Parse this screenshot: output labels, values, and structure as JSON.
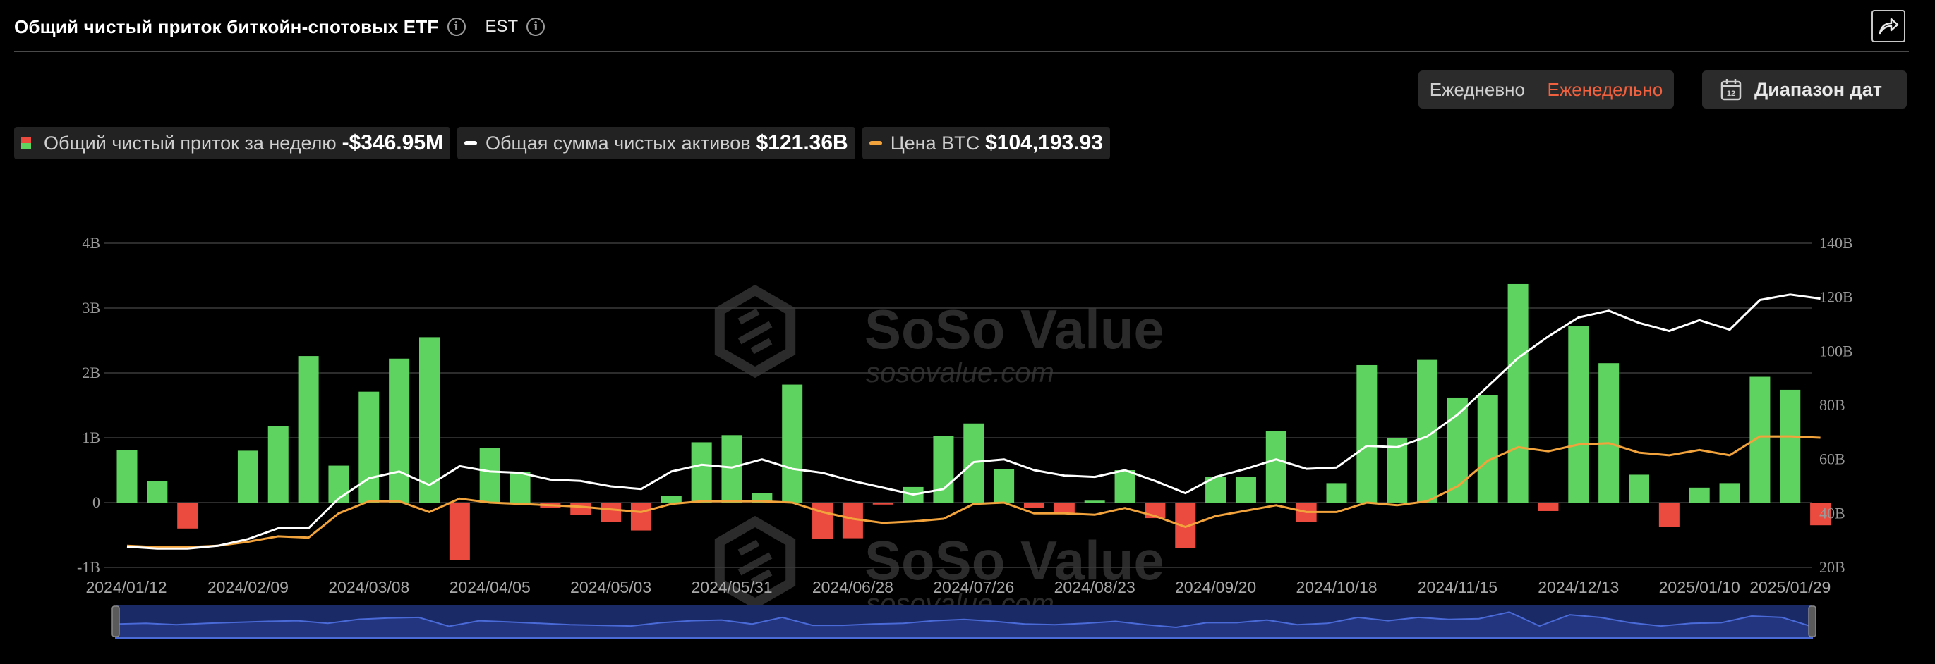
{
  "header": {
    "title": "Общий чистый приток биткойн-спотовых ETF",
    "timezone": "EST"
  },
  "toolbar": {
    "daily_label": "Ежедневно",
    "weekly_label": "Еженедельно",
    "active_period": "weekly",
    "date_range_label": "Диапазон дат",
    "calendar_day": "12"
  },
  "legend": {
    "inflow_label": "Общий чистый приток за неделю",
    "inflow_value": "-$346.95M",
    "assets_label": "Общая сумма чистых активов",
    "assets_value": "$121.36B",
    "price_label": "Цена BTC",
    "price_value": "$104,193.93"
  },
  "watermark": {
    "brand": "SoSo Value",
    "url": "sosovalue.com"
  },
  "colors": {
    "positive": "#5fd35f",
    "negative": "#eb4b3f",
    "assets_line": "#ffffff",
    "price_line": "#f2a33c",
    "active_tab": "#f2613f",
    "navigator_fill": "#1a2a66"
  },
  "chart_data": {
    "type": "bar",
    "left_axis": {
      "ylim": [
        -1,
        4
      ],
      "ticks": [
        "-1B",
        "0",
        "1B",
        "2B",
        "3B",
        "4B"
      ],
      "unit": "B USD"
    },
    "right_axis": {
      "ylim": [
        20,
        140
      ],
      "ticks": [
        "20B",
        "40B",
        "60B",
        "80B",
        "100B",
        "120B",
        "140B"
      ]
    },
    "x_tick_labels": [
      "2024/01/12",
      "2024/02/09",
      "2024/03/08",
      "2024/04/05",
      "2024/05/03",
      "2024/05/31",
      "2024/06/28",
      "2024/07/26",
      "2024/08/23",
      "2024/09/20",
      "2024/10/18",
      "2024/11/15",
      "2024/12/13",
      "2025/01/10",
      "2025/01/29"
    ],
    "x_tick_week_index": [
      0,
      4,
      8,
      12,
      16,
      20,
      24,
      28,
      32,
      36,
      40,
      44,
      48,
      52,
      55
    ],
    "grid": true,
    "series": [
      {
        "name": "Общий чистый приток за неделю",
        "type": "bar",
        "axis": "left",
        "values": [
          0.81,
          0.33,
          -0.4,
          0,
          0.8,
          1.18,
          2.26,
          0.57,
          1.71,
          2.22,
          2.55,
          -0.89,
          0.84,
          0.47,
          -0.08,
          -0.19,
          -0.3,
          -0.43,
          0.1,
          0.93,
          1.04,
          0.15,
          1.82,
          -0.56,
          -0.55,
          -0.03,
          0.24,
          1.03,
          1.22,
          0.52,
          -0.08,
          -0.17,
          0.03,
          0.5,
          -0.24,
          -0.7,
          0.4,
          0.4,
          1.1,
          -0.3,
          0.3,
          2.12,
          0.99,
          2.2,
          1.62,
          1.66,
          3.37,
          -0.13,
          2.72,
          2.15,
          0.43,
          -0.38,
          0.23,
          0.3,
          1.94,
          1.74,
          -0.35
        ]
      },
      {
        "name": "Общая сумма чистых активов",
        "type": "line",
        "axis": "right",
        "values": [
          27.7,
          27.0,
          27.0,
          28.0,
          30.5,
          34.5,
          34.5,
          45.5,
          53.0,
          55.5,
          50.5,
          57.5,
          55.5,
          55.0,
          52.5,
          52.0,
          50.0,
          49.0,
          55.5,
          58.0,
          57.0,
          60.0,
          56.5,
          55.0,
          52.0,
          49.5,
          47.0,
          49.0,
          59.0,
          60.0,
          56.0,
          54.0,
          53.5,
          56.0,
          52.0,
          47.5,
          53.5,
          56.5,
          60.0,
          56.5,
          57.0,
          65.0,
          64.5,
          68.5,
          76.5,
          87.0,
          97.5,
          105.5,
          112.5,
          115.0,
          110.5,
          107.5,
          111.5,
          108.0,
          119.0,
          121.0,
          119.5
        ]
      },
      {
        "name": "Цена BTC",
        "type": "line",
        "axis": "right",
        "values": [
          28.0,
          27.5,
          27.5,
          28.0,
          29.5,
          31.5,
          31.0,
          40.0,
          44.5,
          44.5,
          40.5,
          45.5,
          44.0,
          43.5,
          43.0,
          42.5,
          41.5,
          40.5,
          43.5,
          44.5,
          44.5,
          44.5,
          44.0,
          40.5,
          38.0,
          36.5,
          37.0,
          38.0,
          43.5,
          44.0,
          40.0,
          40.0,
          39.5,
          42.0,
          39.0,
          35.0,
          39.0,
          41.0,
          43.0,
          40.5,
          40.5,
          44.0,
          43.0,
          44.5,
          50.0,
          59.5,
          64.5,
          63.0,
          65.5,
          66.0,
          62.5,
          61.5,
          63.5,
          61.5,
          68.5,
          68.5,
          68.0
        ]
      }
    ],
    "navigator_values": [
      0.42,
      0.44,
      0.4,
      0.44,
      0.47,
      0.5,
      0.52,
      0.44,
      0.56,
      0.6,
      0.62,
      0.35,
      0.52,
      0.48,
      0.44,
      0.4,
      0.38,
      0.36,
      0.46,
      0.52,
      0.54,
      0.42,
      0.62,
      0.38,
      0.38,
      0.42,
      0.44,
      0.52,
      0.56,
      0.5,
      0.42,
      0.4,
      0.44,
      0.5,
      0.4,
      0.32,
      0.46,
      0.46,
      0.54,
      0.4,
      0.44,
      0.62,
      0.52,
      0.62,
      0.56,
      0.58,
      0.78,
      0.36,
      0.7,
      0.62,
      0.46,
      0.36,
      0.44,
      0.46,
      0.66,
      0.62,
      0.34
    ]
  }
}
